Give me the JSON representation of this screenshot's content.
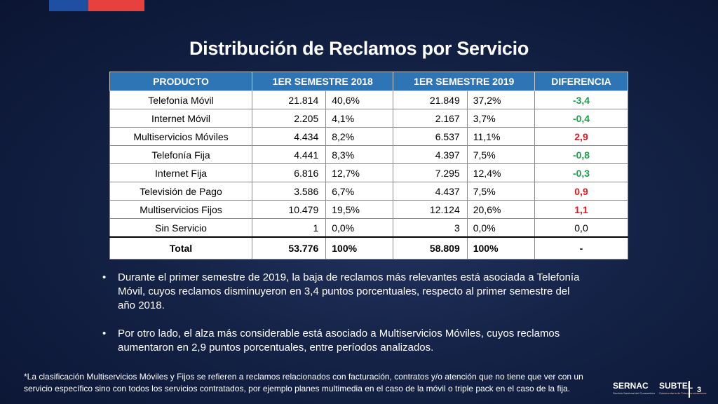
{
  "title": "Distribución de Reclamos por Servicio",
  "table": {
    "headers": [
      "PRODUCTO",
      "1ER SEMESTRE 2018",
      "1ER SEMESTRE 2019",
      "DIFERENCIA"
    ],
    "rows": [
      {
        "producto": "Telefonía Móvil",
        "v2018": "21.814",
        "p2018": "40,6%",
        "v2019": "21.849",
        "p2019": "37,2%",
        "diff": "-3,4",
        "trend": "neg"
      },
      {
        "producto": "Internet Móvil",
        "v2018": "2.205",
        "p2018": "4,1%",
        "v2019": "2.167",
        "p2019": "3,7%",
        "diff": "-0,4",
        "trend": "neg"
      },
      {
        "producto": "Multiservicios Móviles",
        "v2018": "4.434",
        "p2018": "8,2%",
        "v2019": "6.537",
        "p2019": "11,1%",
        "diff": "2,9",
        "trend": "pos"
      },
      {
        "producto": "Telefonía Fija",
        "v2018": "4.441",
        "p2018": "8,3%",
        "v2019": "4.397",
        "p2019": "7,5%",
        "diff": "-0,8",
        "trend": "neg"
      },
      {
        "producto": "Internet Fija",
        "v2018": "6.816",
        "p2018": "12,7%",
        "v2019": "7.295",
        "p2019": "12,4%",
        "diff": "-0,3",
        "trend": "neg"
      },
      {
        "producto": "Televisión de Pago",
        "v2018": "3.586",
        "p2018": "6,7%",
        "v2019": "4.437",
        "p2019": "7,5%",
        "diff": "0,9",
        "trend": "pos"
      },
      {
        "producto": "Multiservicios Fijos",
        "v2018": "10.479",
        "p2018": "19,5%",
        "v2019": "12.124",
        "p2019": "20,6%",
        "diff": "1,1",
        "trend": "pos"
      },
      {
        "producto": "Sin Servicio",
        "v2018": "1",
        "p2018": "0,0%",
        "v2019": "3",
        "p2019": "0,0%",
        "diff": "0,0",
        "trend": "neutral"
      }
    ],
    "total": {
      "producto": "Total",
      "v2018": "53.776",
      "p2018": "100%",
      "v2019": "58.809",
      "p2019": "100%",
      "diff": "-"
    }
  },
  "colors": {
    "header_blue": "#2e75b6",
    "decrease_green": "#19a049",
    "increase_red": "#e8131b"
  },
  "bullets": [
    {
      "marker": "•",
      "text": "Durante el primer semestre de 2019, la baja de reclamos más relevantes está asociada a Telefonía Móvil, cuyos reclamos disminuyeron en 3,4 puntos porcentuales, respecto al primer semestre del año 2018."
    },
    {
      "marker": "•",
      "text": "Por otro lado, el alza más considerable está asociado a Multiservicios Móviles, cuyos reclamos aumentaron en 2,9 puntos porcentuales, entre períodos analizados."
    }
  ],
  "footnote": "*La clasificación Multiservicios Móviles y Fijos se refieren a reclamos relacionados con facturación, contratos y/o atención que no tiene que ver con un servicio específico sino con  todos los servicios contratados, por ejemplo planes multimedia en el caso de la móvil o triple pack en el caso de la fija.",
  "logos": {
    "sernac": {
      "name": "SERNAC",
      "tag": "Servicio Nacional del Consumidor"
    },
    "subtel": {
      "name": "SUBTEL",
      "tag": "Subsecretaría de Telecomunicaciones"
    }
  },
  "page_number": "3"
}
